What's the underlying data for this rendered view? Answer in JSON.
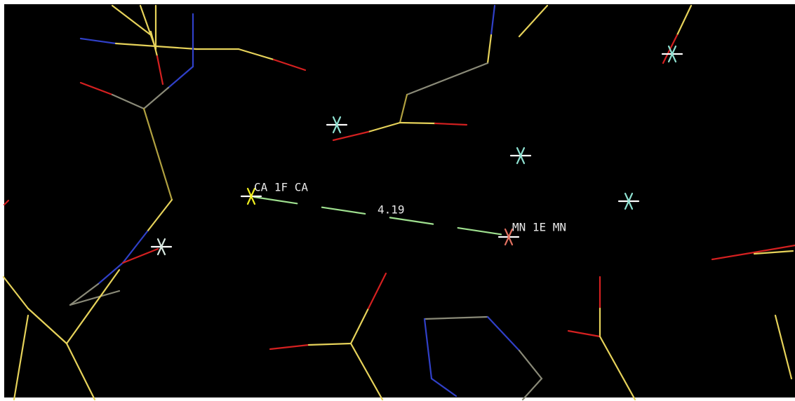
{
  "labels": {
    "atom_a": "CA 1F CA",
    "distance": "4.19",
    "atom_b": "MN 1E MN"
  }
}
